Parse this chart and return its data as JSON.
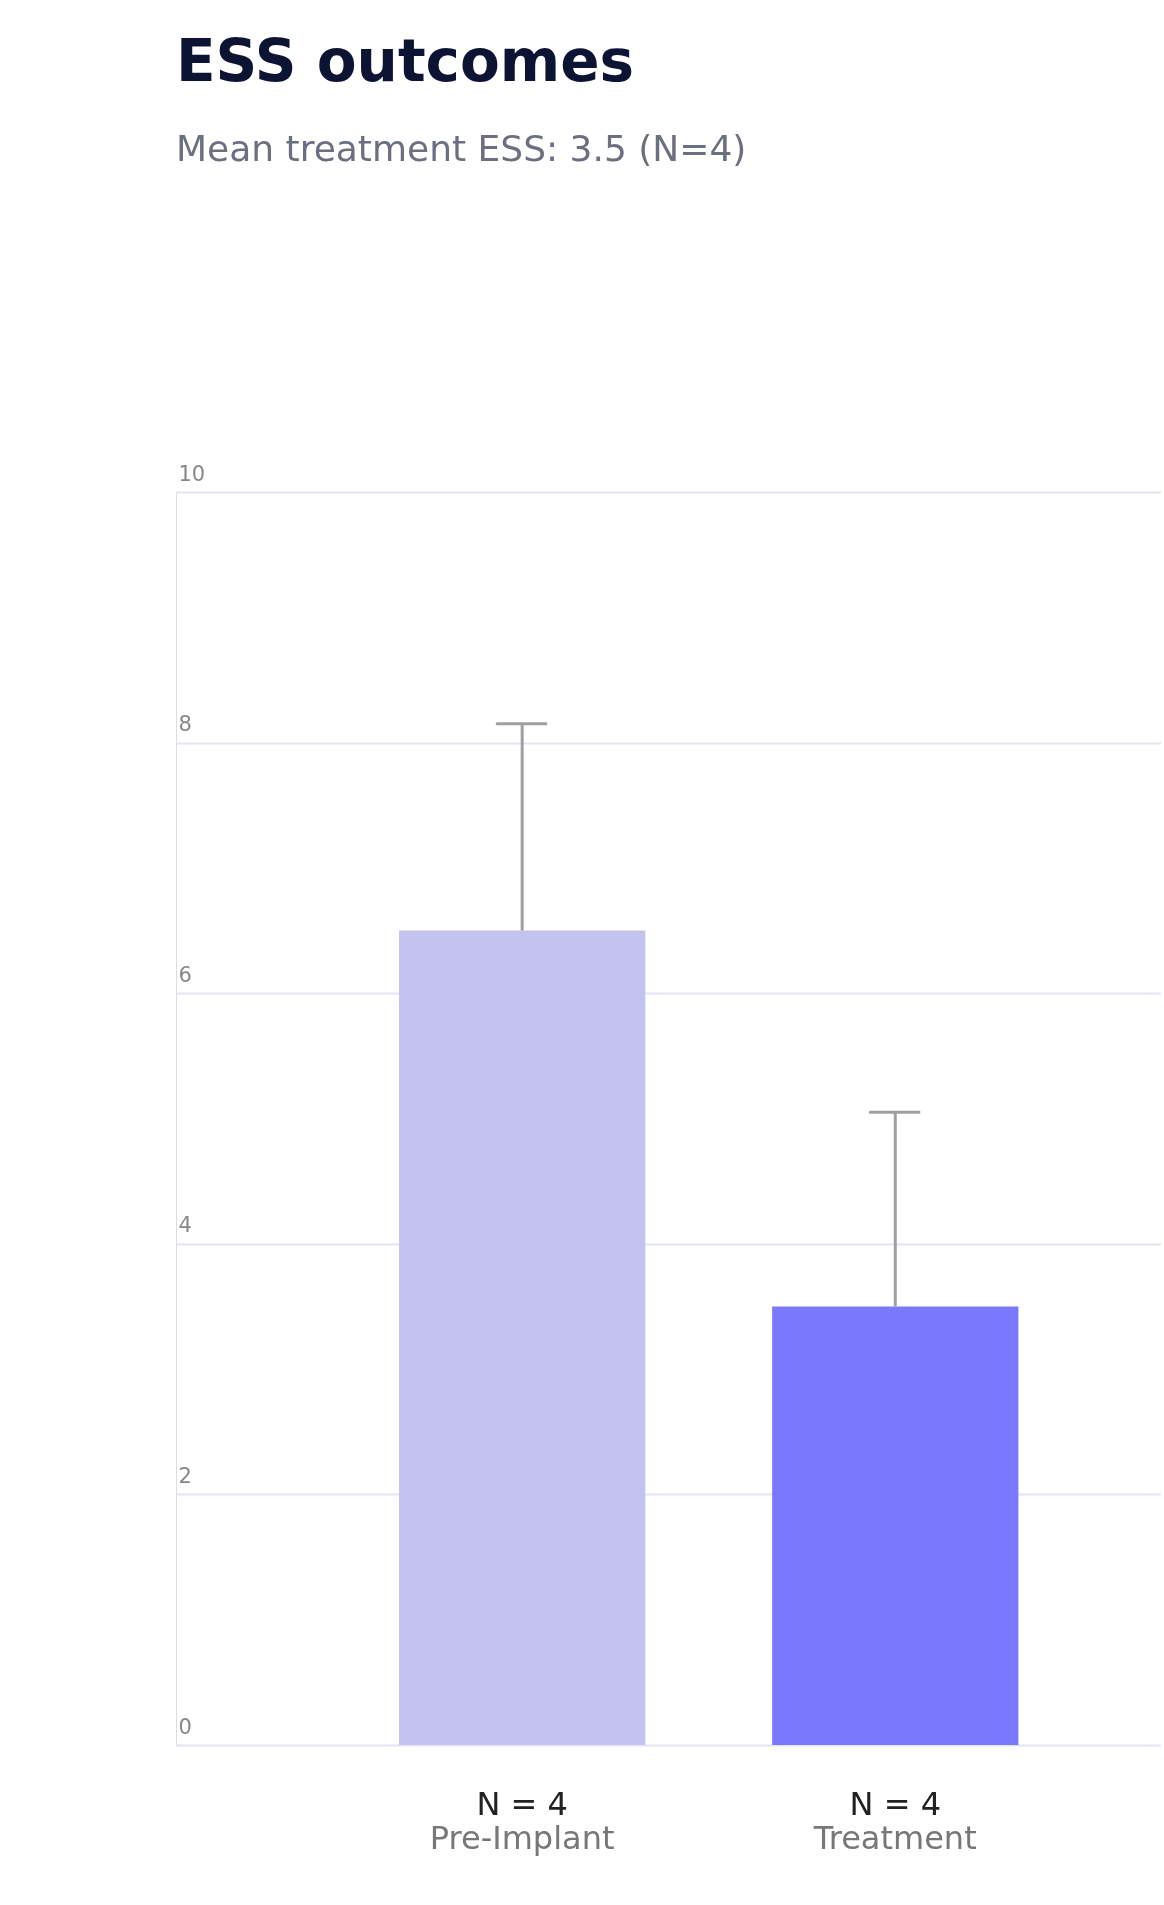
{
  "chart_data": {
    "type": "bar",
    "title": "ESS outcomes",
    "subtitle": "Mean treatment ESS: 3.5 (N=4)",
    "categories": [
      "Pre-Implant",
      "Treatment"
    ],
    "values": [
      6.5,
      3.5
    ],
    "colors": [
      "#c4c3f0",
      "#7a78fd"
    ],
    "errors": [
      [
        6.5,
        8.15
      ],
      [
        3.5,
        5.05
      ]
    ],
    "ylim": [
      0,
      10
    ],
    "yticks": [
      0,
      2,
      4,
      6,
      8,
      10
    ],
    "grid": "y",
    "annotations": [
      "N = 4",
      "N = 4"
    ]
  }
}
